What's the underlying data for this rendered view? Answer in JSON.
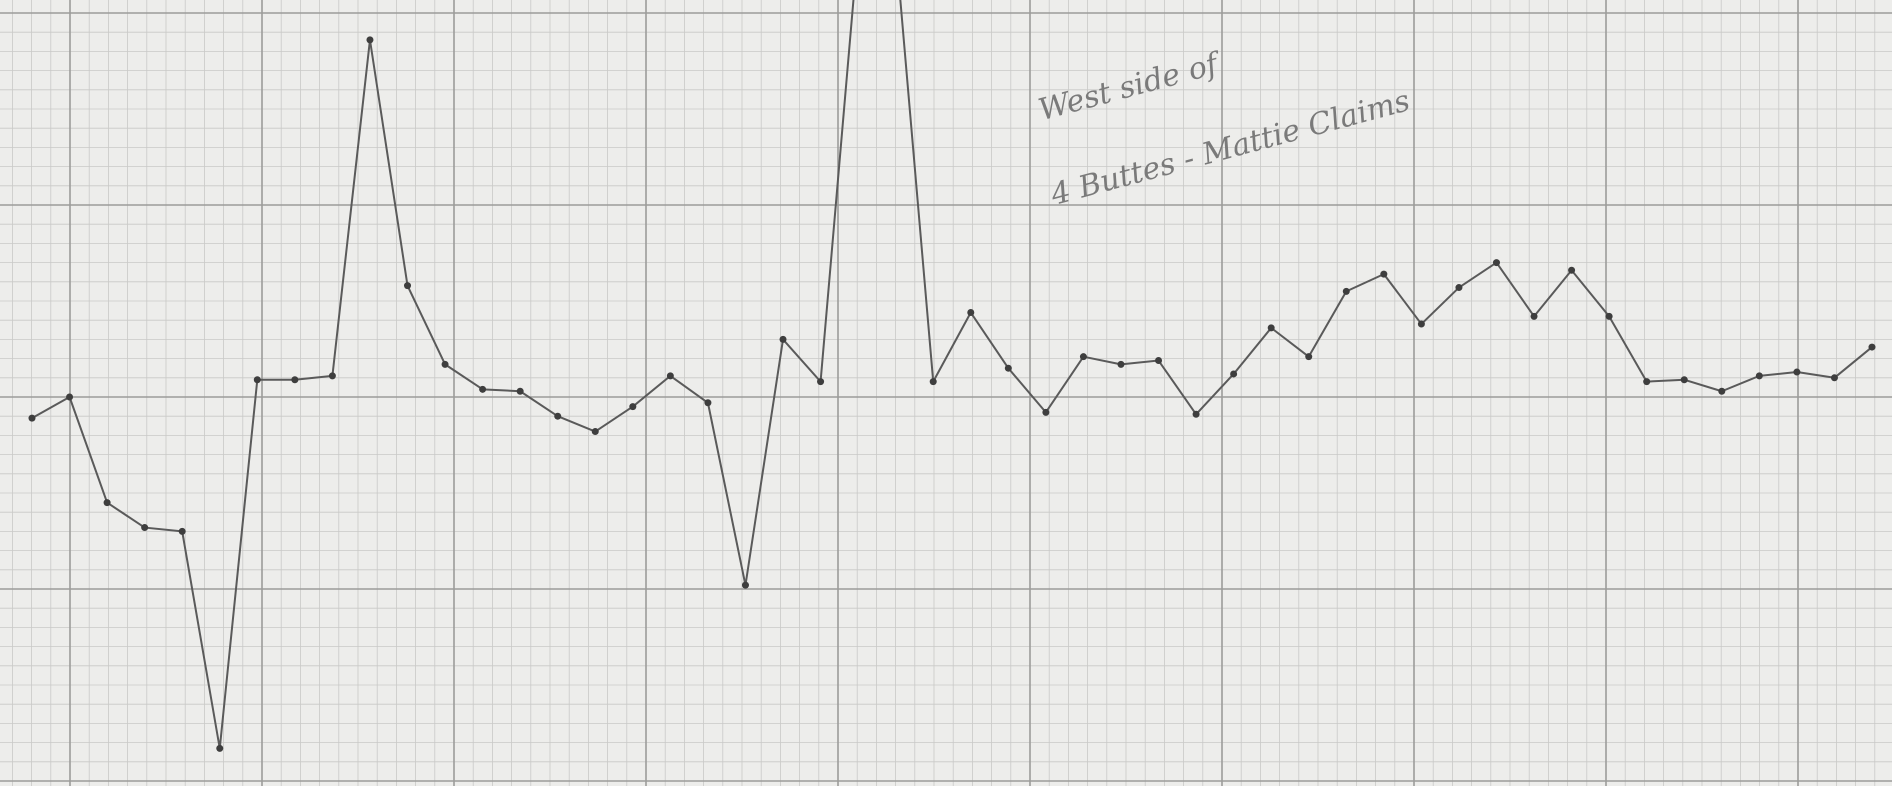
{
  "sheet": {
    "paper_color": "#ededeb",
    "minor_grid_color": "#c9c9c7",
    "major_grid_color": "#9c9c9a",
    "pencil_color": "#5a5a5a",
    "note_line_1": "West side of",
    "note_line_2": "4 Buttes - Mattie Claims"
  },
  "chart_data": {
    "type": "line",
    "title": "",
    "xlabel": "",
    "ylabel": "",
    "grid": true,
    "xlim": [
      0,
      49
    ],
    "ylim": [
      -2,
      2
    ],
    "clip_top": 2,
    "series": [
      {
        "values": [
          -0.11,
          0.0,
          -0.55,
          -0.68,
          -0.7,
          -1.83,
          0.09,
          0.09,
          0.11,
          1.86,
          0.58,
          0.17,
          0.04,
          0.03,
          -0.1,
          -0.18,
          -0.05,
          0.11,
          -0.03,
          -0.98,
          0.3,
          0.08,
          2.35,
          2.35,
          0.08,
          0.44,
          0.15,
          -0.08,
          0.21,
          0.17,
          0.19,
          -0.09,
          0.12,
          0.36,
          0.21,
          0.55,
          0.64,
          0.38,
          0.57,
          0.7,
          0.42,
          0.66,
          0.42,
          0.08,
          0.09,
          0.03,
          0.11,
          0.13,
          0.1,
          0.26
        ]
      }
    ]
  }
}
